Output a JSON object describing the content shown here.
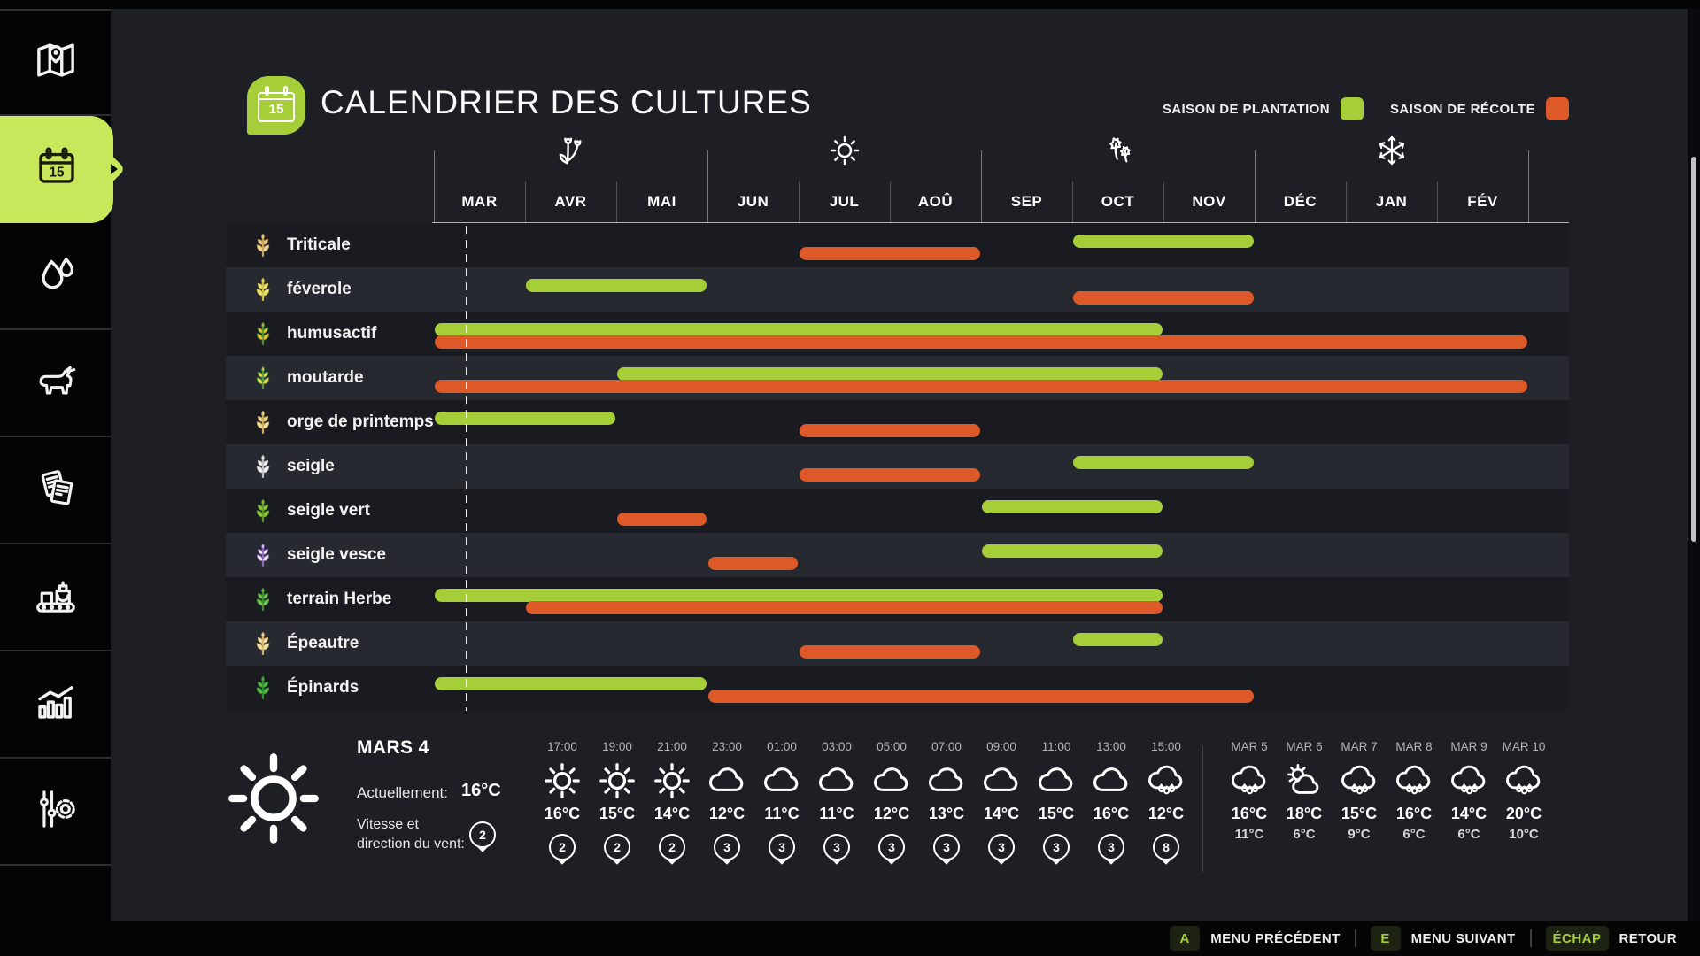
{
  "sidebar": {
    "calendar_badge": "15",
    "items": [
      {
        "id": "map",
        "active": false
      },
      {
        "id": "calendar",
        "active": true
      },
      {
        "id": "water",
        "active": false
      },
      {
        "id": "animals",
        "active": false
      },
      {
        "id": "contracts",
        "active": false
      },
      {
        "id": "production",
        "active": false
      },
      {
        "id": "statistics",
        "active": false
      },
      {
        "id": "settings",
        "active": false
      }
    ]
  },
  "header": {
    "title": "CALENDRIER DES CULTURES",
    "badge_number": "15",
    "legend": [
      {
        "label": "SAISON DE PLANTATION",
        "color": "#a6ce39"
      },
      {
        "label": "SAISON DE RÉCOLTE",
        "color": "#dd5a28"
      }
    ]
  },
  "chart_data": {
    "type": "gantt",
    "title": "CALENDRIER DES CULTURES",
    "months": [
      "MAR",
      "AVR",
      "MAI",
      "JUN",
      "JUL",
      "AOÛ",
      "SEP",
      "OCT",
      "NOV",
      "DÉC",
      "JAN",
      "FÉV"
    ],
    "season_icons": [
      {
        "key": "spring",
        "icon": "spring-flowers-icon",
        "month_index": 1
      },
      {
        "key": "summer",
        "icon": "summer-sun-icon",
        "month_index": 4
      },
      {
        "key": "autumn",
        "icon": "autumn-leaves-icon",
        "month_index": 7
      },
      {
        "key": "winter",
        "icon": "winter-snowflake-icon",
        "month_index": 10
      }
    ],
    "current_date_line": {
      "month": "MAR",
      "fraction": 0.36
    },
    "plant_color": "#a6ce39",
    "harvest_color": "#dd5a28",
    "crops": [
      {
        "name": "Triticale",
        "icon_fill": "#ecd9a2",
        "icon_stem": "#c9a158",
        "plant": [
          7,
          8
        ],
        "harvest": [
          4,
          5
        ]
      },
      {
        "name": "féverole",
        "icon_fill": "#e9e27b",
        "icon_stem": "#cfc23f",
        "plant": [
          1,
          2
        ],
        "harvest": [
          7,
          8
        ]
      },
      {
        "name": "humusactif",
        "icon_fill": "#f2c433",
        "icon_stem": "#4f8f3a",
        "plant": [
          0,
          7
        ],
        "harvest": [
          0,
          11
        ]
      },
      {
        "name": "moutarde",
        "icon_fill": "#f0d94a",
        "icon_stem": "#4f9a44",
        "plant": [
          2,
          7
        ],
        "harvest": [
          0,
          11
        ]
      },
      {
        "name": "orge de printemps",
        "icon_fill": "#f0e3ab",
        "icon_stem": "#cfa857",
        "plant": [
          0,
          1
        ],
        "harvest": [
          4,
          5
        ]
      },
      {
        "name": "seigle",
        "icon_fill": "#f4f4f4",
        "icon_stem": "#bdbdbd",
        "plant": [
          7,
          8
        ],
        "harvest": [
          4,
          5
        ]
      },
      {
        "name": "seigle vert",
        "icon_fill": "#93c83e",
        "icon_stem": "#5d9a2c",
        "plant": [
          6,
          7
        ],
        "harvest": [
          2,
          2
        ]
      },
      {
        "name": "seigle vesce",
        "icon_fill": "#f2f0f6",
        "icon_stem": "#8a68c0",
        "plant": [
          6,
          7
        ],
        "harvest": [
          3,
          3
        ]
      },
      {
        "name": "terrain Herbe",
        "icon_fill": "#79c256",
        "icon_stem": "#3f8f33",
        "plant": [
          0,
          7
        ],
        "harvest": [
          1,
          7
        ]
      },
      {
        "name": "Épeautre",
        "icon_fill": "#f2e5b5",
        "icon_stem": "#d2b068",
        "plant": [
          7,
          7
        ],
        "harvest": [
          4,
          5
        ]
      },
      {
        "name": "Épinards",
        "icon_fill": "#5bba49",
        "icon_stem": "#2f8f2f",
        "plant": [
          0,
          2
        ],
        "harvest": [
          3,
          8
        ]
      }
    ]
  },
  "weather": {
    "current": {
      "day": "MARS 4",
      "temp_label": "Actuellement:",
      "temp": "16°C",
      "wind_label_line1": "Vitesse et",
      "wind_label_line2": "direction du vent:",
      "wind": "2"
    },
    "hourly": [
      {
        "time": "17:00",
        "icon": "sun",
        "temp": "16°C",
        "wind": "2"
      },
      {
        "time": "19:00",
        "icon": "sun",
        "temp": "15°C",
        "wind": "2"
      },
      {
        "time": "21:00",
        "icon": "sun",
        "temp": "14°C",
        "wind": "2"
      },
      {
        "time": "23:00",
        "icon": "cloud",
        "temp": "12°C",
        "wind": "3"
      },
      {
        "time": "01:00",
        "icon": "cloud",
        "temp": "11°C",
        "wind": "3"
      },
      {
        "time": "03:00",
        "icon": "cloud",
        "temp": "11°C",
        "wind": "3"
      },
      {
        "time": "05:00",
        "icon": "cloud",
        "temp": "12°C",
        "wind": "3"
      },
      {
        "time": "07:00",
        "icon": "cloud",
        "temp": "13°C",
        "wind": "3"
      },
      {
        "time": "09:00",
        "icon": "cloud",
        "temp": "14°C",
        "wind": "3"
      },
      {
        "time": "11:00",
        "icon": "cloud",
        "temp": "15°C",
        "wind": "3"
      },
      {
        "time": "13:00",
        "icon": "cloud",
        "temp": "16°C",
        "wind": "3"
      },
      {
        "time": "15:00",
        "icon": "rain",
        "temp": "12°C",
        "wind": "8"
      }
    ],
    "daily": [
      {
        "day": "MAR 5",
        "icon": "rain",
        "high": "16°C",
        "low": "11°C"
      },
      {
        "day": "MAR 6",
        "icon": "sun-cloud",
        "high": "18°C",
        "low": "6°C"
      },
      {
        "day": "MAR 7",
        "icon": "rain",
        "high": "15°C",
        "low": "9°C"
      },
      {
        "day": "MAR 8",
        "icon": "rain",
        "high": "16°C",
        "low": "6°C"
      },
      {
        "day": "MAR 9",
        "icon": "rain",
        "high": "14°C",
        "low": "6°C"
      },
      {
        "day": "MAR 10",
        "icon": "rain",
        "high": "20°C",
        "low": "10°C"
      }
    ]
  },
  "footer": {
    "items": [
      {
        "key": "A",
        "label": "MENU PRÉCÉDENT"
      },
      {
        "key": "E",
        "label": "MENU SUIVANT"
      },
      {
        "key": "ÉCHAP",
        "label": "RETOUR"
      }
    ]
  }
}
